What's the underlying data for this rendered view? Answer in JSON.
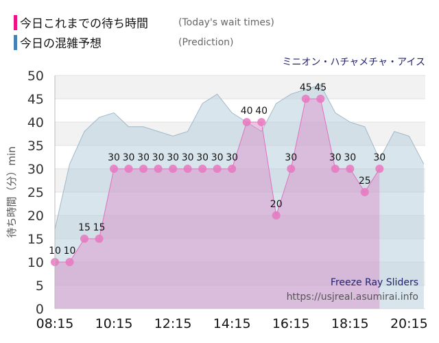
{
  "legend": [
    {
      "label": "今日これまでの待ち時間",
      "en": "(Today's wait times)",
      "color": "#ee1188"
    },
    {
      "label": "今日の混雑予想",
      "en": "(Prediction)",
      "color": "#4682b4"
    }
  ],
  "attraction": "ミニオン・ハチャメチャ・アイス",
  "watermark": {
    "line1": "Freeze Ray Sliders",
    "line2": "https://usjreal.asumirai.info"
  },
  "chart_data": {
    "type": "area",
    "ylabel": "待ち時間（分）min",
    "ylim": [
      0,
      50
    ],
    "yticks": [
      0,
      5,
      10,
      15,
      20,
      25,
      30,
      35,
      40,
      45,
      50
    ],
    "xlim": [
      "08:15",
      "20:48"
    ],
    "xticks": [
      "08:15",
      "10:15",
      "12:15",
      "14:15",
      "16:15",
      "18:15",
      "20:15"
    ],
    "grid": true,
    "series": [
      {
        "name": "今日これまでの待ち時間",
        "color": "#e070c0",
        "x": [
          "08:15",
          "08:45",
          "09:15",
          "09:45",
          "10:15",
          "10:45",
          "11:15",
          "11:45",
          "12:15",
          "12:45",
          "13:15",
          "13:45",
          "14:15",
          "14:45",
          "15:15",
          "15:45",
          "16:15",
          "16:45",
          "17:15",
          "17:45",
          "18:15",
          "18:45",
          "19:15"
        ],
        "values": [
          10,
          10,
          15,
          15,
          30,
          30,
          30,
          30,
          30,
          30,
          30,
          30,
          30,
          40,
          40,
          20,
          30,
          45,
          45,
          30,
          30,
          25,
          30
        ]
      },
      {
        "name": "今日の混雑予想",
        "color": "#b8cfdc",
        "x": [
          "08:15",
          "08:45",
          "09:15",
          "09:45",
          "10:15",
          "10:45",
          "11:15",
          "11:45",
          "12:15",
          "12:45",
          "13:15",
          "13:45",
          "14:15",
          "14:45",
          "15:15",
          "15:45",
          "16:15",
          "16:45",
          "17:15",
          "17:45",
          "18:15",
          "18:45",
          "19:15",
          "19:45",
          "20:15",
          "20:45"
        ],
        "values": [
          17,
          31,
          38,
          41,
          42,
          39,
          39,
          38,
          37,
          38,
          44,
          46,
          42,
          40,
          38,
          44,
          46,
          47,
          48,
          42,
          40,
          39,
          32,
          38,
          37,
          31
        ]
      }
    ]
  }
}
